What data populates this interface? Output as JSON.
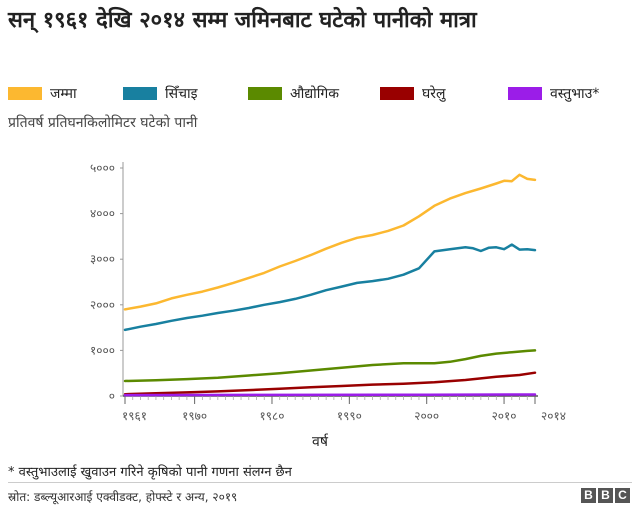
{
  "title": "सन् १९६१ देखि २०१४ सम्म जमिनबाट घटेको पानीको मात्रा",
  "subtitle": "प्रतिवर्ष प्रतिघनकिलोमिटर घटेको पानी",
  "legend": [
    {
      "label": "जम्मा",
      "color": "#fcb830"
    },
    {
      "label": "सिँचाइ",
      "color": "#1880a0"
    },
    {
      "label": "औद्योगिक",
      "color": "#5b8a00"
    },
    {
      "label": "घरेलु",
      "color": "#990000"
    },
    {
      "label": "वस्तुभाउ*",
      "color": "#9b1de8"
    }
  ],
  "footnote": "* वस्तुभाउलाई खुवाउन गरिने कृषिको पानी गणना संलग्न छैन",
  "source": "स्रोत: डब्ल्यूआरआई एक्वीडक्ट, होफ्स्टे र अन्य, २०१९",
  "brand": [
    "B",
    "B",
    "C"
  ],
  "chart_data": {
    "type": "line",
    "xlabel": "वर्ष",
    "ylabel": "",
    "xlim": [
      1961,
      2014
    ],
    "ylim": [
      0,
      5000
    ],
    "x_ticks": [
      1961,
      1970,
      1980,
      1990,
      2000,
      2010,
      2014
    ],
    "x_tick_labels": [
      "१९६१",
      "१९७०",
      "१९८०",
      "१९९०",
      "२०००",
      "२०१०",
      "२०१४"
    ],
    "y_ticks": [
      0,
      1000,
      2000,
      3000,
      4000,
      5000
    ],
    "y_tick_labels": [
      "०",
      "१०००",
      "२०००",
      "३०००",
      "४०००",
      "५०००"
    ],
    "grid": false,
    "series": [
      {
        "name": "जम्मा",
        "color": "#fcb830",
        "x": [
          1961,
          1963,
          1965,
          1967,
          1969,
          1971,
          1973,
          1975,
          1977,
          1979,
          1981,
          1983,
          1985,
          1987,
          1989,
          1991,
          1993,
          1995,
          1997,
          1999,
          2001,
          2003,
          2005,
          2007,
          2009,
          2010,
          2011,
          2012,
          2013,
          2014
        ],
        "y": [
          1900,
          1960,
          2030,
          2140,
          2220,
          2290,
          2380,
          2480,
          2590,
          2700,
          2840,
          2960,
          3090,
          3230,
          3360,
          3470,
          3530,
          3620,
          3740,
          3940,
          4170,
          4330,
          4450,
          4550,
          4660,
          4720,
          4710,
          4850,
          4760,
          4740
        ]
      },
      {
        "name": "सिँचाइ",
        "color": "#1880a0",
        "x": [
          1961,
          1963,
          1965,
          1967,
          1969,
          1971,
          1973,
          1975,
          1977,
          1979,
          1981,
          1983,
          1985,
          1987,
          1989,
          1991,
          1993,
          1995,
          1997,
          1999,
          2001,
          2003,
          2005,
          2006,
          2007,
          2008,
          2009,
          2010,
          2011,
          2012,
          2013,
          2014
        ],
        "y": [
          1450,
          1520,
          1580,
          1650,
          1710,
          1760,
          1820,
          1870,
          1930,
          2000,
          2060,
          2130,
          2220,
          2320,
          2400,
          2480,
          2520,
          2570,
          2660,
          2800,
          3170,
          3220,
          3260,
          3240,
          3180,
          3250,
          3260,
          3220,
          3320,
          3210,
          3220,
          3200
        ]
      },
      {
        "name": "औद्योगिक",
        "color": "#5b8a00",
        "x": [
          1961,
          1965,
          1969,
          1973,
          1977,
          1981,
          1985,
          1989,
          1993,
          1997,
          2001,
          2003,
          2005,
          2007,
          2009,
          2011,
          2013,
          2014
        ],
        "y": [
          330,
          345,
          370,
          400,
          450,
          500,
          560,
          620,
          680,
          720,
          720,
          750,
          810,
          880,
          930,
          960,
          990,
          1000
        ]
      },
      {
        "name": "घरेलु",
        "color": "#990000",
        "x": [
          1961,
          1965,
          1969,
          1973,
          1977,
          1981,
          1985,
          1989,
          1993,
          1997,
          2001,
          2005,
          2009,
          2012,
          2014
        ],
        "y": [
          40,
          60,
          80,
          100,
          130,
          160,
          190,
          220,
          250,
          270,
          300,
          350,
          420,
          460,
          510
        ]
      },
      {
        "name": "वस्तुभाउ*",
        "color": "#9b1de8",
        "x": [
          1961,
          1980,
          2000,
          2014
        ],
        "y": [
          20,
          24,
          28,
          32
        ]
      }
    ]
  }
}
